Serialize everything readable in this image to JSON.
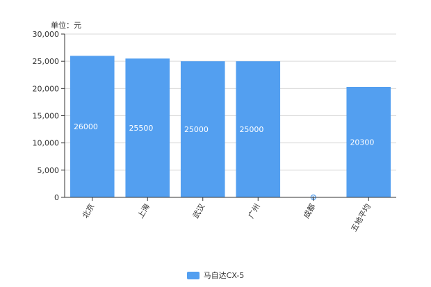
{
  "chart_data": {
    "type": "bar",
    "unit_label": "单位：元",
    "categories": [
      "北京",
      "上海",
      "武汉",
      "广州",
      "成都",
      "五地平均"
    ],
    "series": [
      {
        "name": "马自达CX-5",
        "values": [
          26000,
          25500,
          25000,
          25000,
          0,
          20300
        ],
        "color": "#539ff0"
      }
    ],
    "ylim": [
      0,
      30000
    ],
    "yticks": [
      "0",
      "5,000",
      "10,000",
      "15,000",
      "20,000",
      "25,000",
      "30,000"
    ],
    "grid": true,
    "legend_position": "bottom-center"
  }
}
